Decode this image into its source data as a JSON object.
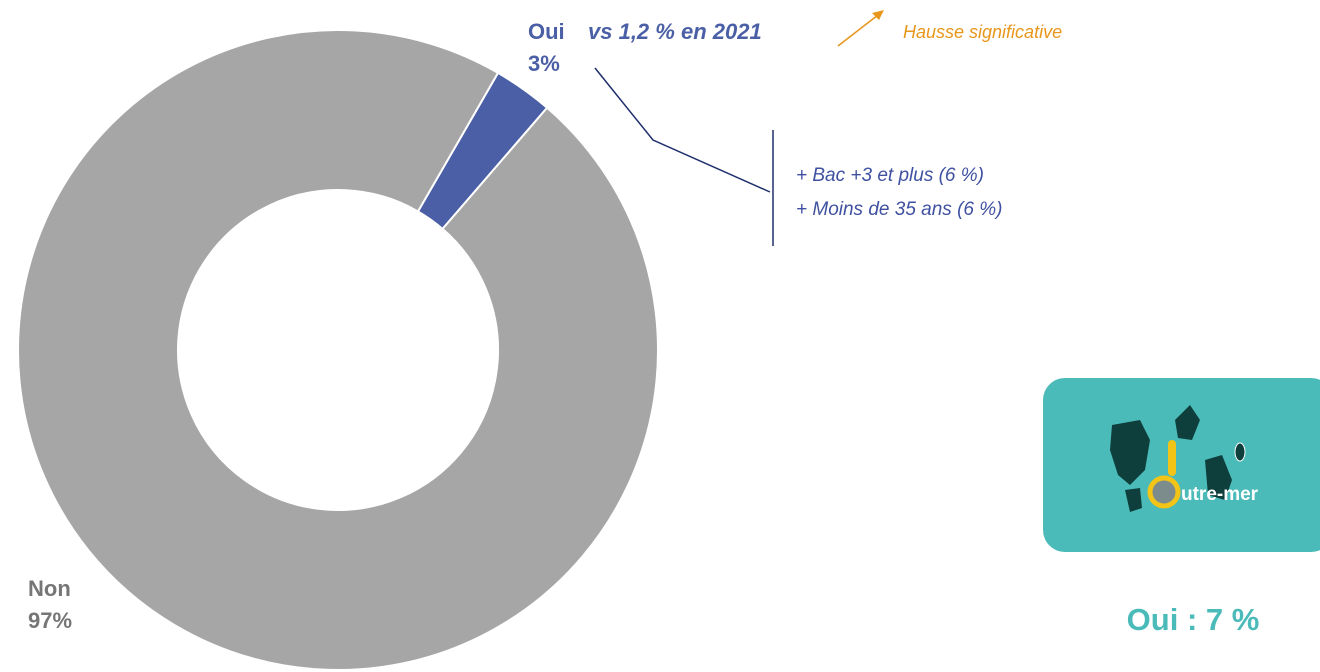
{
  "chart_data": {
    "type": "donut",
    "categories": [
      "Oui",
      "Non"
    ],
    "values": [
      3,
      97
    ],
    "value_labels": [
      "3%",
      "97%"
    ],
    "colors": [
      "#4a5fa5",
      "#a6a6a6"
    ],
    "annotations": {
      "comparison": "vs 1,2 % en 2021",
      "legend_arrow": "Hausse significative",
      "detail": [
        "+ Bac +3 et plus (6 %)",
        "+ Moins de 35 ans (6 %)"
      ],
      "outre_mer": "Oui : 7 %"
    }
  },
  "logo": {
    "text": "utre-mer"
  }
}
